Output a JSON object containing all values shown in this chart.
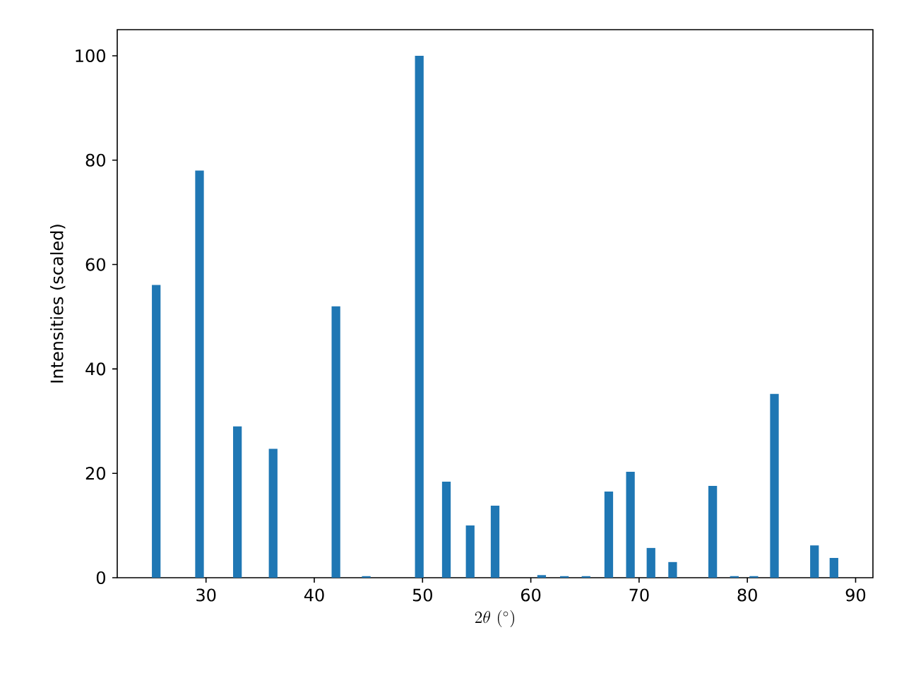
{
  "chart_data": {
    "type": "bar",
    "xlabel": "2\\theta\\ (^{\\circ})",
    "ylabel": "Intensities (scaled)",
    "x": [
      25.4,
      29.4,
      32.9,
      36.2,
      42.0,
      44.8,
      49.7,
      52.2,
      54.4,
      56.7,
      61.0,
      63.1,
      65.1,
      67.2,
      69.2,
      71.1,
      73.1,
      76.8,
      78.8,
      80.6,
      82.5,
      86.2,
      88.0
    ],
    "values": [
      56.1,
      78.0,
      29.0,
      24.7,
      52.0,
      0.3,
      100,
      18.4,
      10.0,
      13.8,
      0.5,
      0.3,
      0.3,
      16.5,
      20.3,
      5.7,
      3.0,
      17.6,
      0.3,
      0.3,
      35.2,
      6.2,
      3.8
    ],
    "color": "#1f77b4",
    "xlim": [
      21.8,
      91.6
    ],
    "ylim": [
      0,
      105
    ],
    "xticks": [
      30,
      40,
      50,
      60,
      70,
      80,
      90
    ],
    "yticks": [
      0,
      20,
      40,
      60,
      80,
      100
    ],
    "grid": false
  }
}
